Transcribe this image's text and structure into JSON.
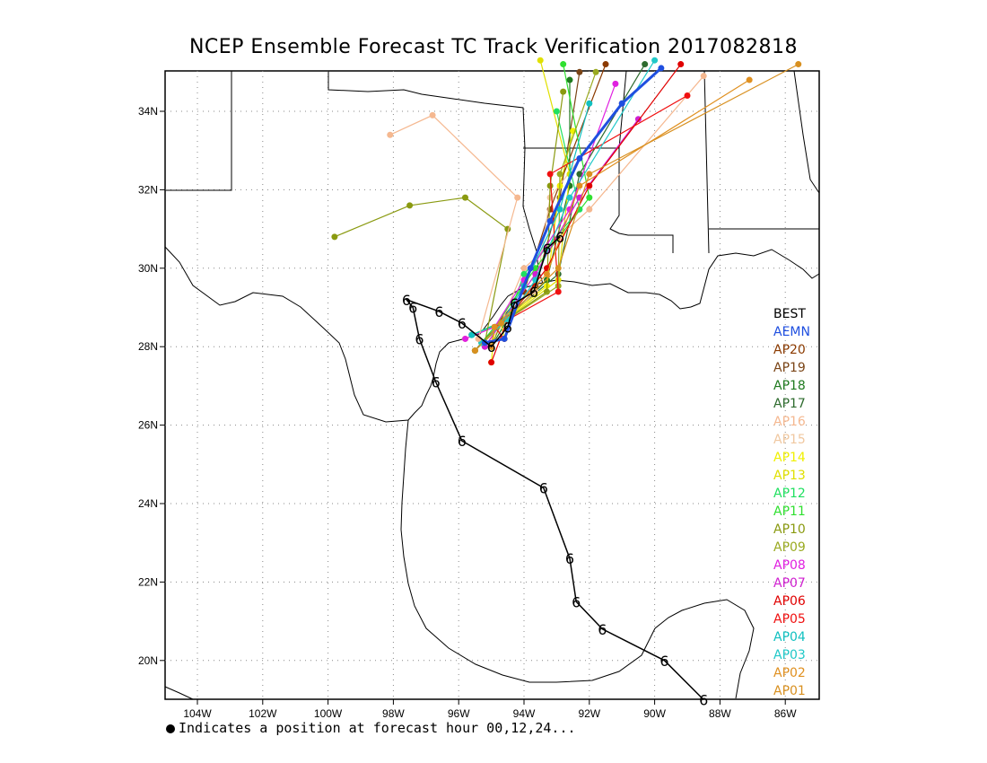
{
  "title": "NCEP Ensemble Forecast TC Track Verification 2017082818",
  "footnote": "Indicates a position at forecast hour 00,12,24...",
  "axes": {
    "lon_labels": [
      "104W",
      "102W",
      "100W",
      "98W",
      "96W",
      "94W",
      "92W",
      "90W",
      "88W",
      "86W"
    ],
    "lat_labels": [
      "34N",
      "32N",
      "30N",
      "28N",
      "26N",
      "24N",
      "22N",
      "20N"
    ]
  },
  "legend": [
    {
      "label": "BEST",
      "color": "#000000"
    },
    {
      "label": "AEMN",
      "color": "#1f4fe0"
    },
    {
      "label": "AP20",
      "color": "#8b3a00"
    },
    {
      "label": "AP19",
      "color": "#7a4416"
    },
    {
      "label": "AP18",
      "color": "#1f7a1f"
    },
    {
      "label": "AP17",
      "color": "#2e6b2e"
    },
    {
      "label": "AP16",
      "color": "#f5b890"
    },
    {
      "label": "AP15",
      "color": "#f0c8a0"
    },
    {
      "label": "AP14",
      "color": "#f0f000"
    },
    {
      "label": "AP13",
      "color": "#e0e000"
    },
    {
      "label": "AP12",
      "color": "#20e060"
    },
    {
      "label": "AP11",
      "color": "#30e030"
    },
    {
      "label": "AP10",
      "color": "#8a9a10"
    },
    {
      "label": "AP09",
      "color": "#9aaa20"
    },
    {
      "label": "AP08",
      "color": "#e020e0"
    },
    {
      "label": "AP07",
      "color": "#d020d0"
    },
    {
      "label": "AP06",
      "color": "#e00000"
    },
    {
      "label": "AP05",
      "color": "#f01010"
    },
    {
      "label": "AP04",
      "color": "#10c0c0"
    },
    {
      "label": "AP03",
      "color": "#20c8c8"
    },
    {
      "label": "AP02",
      "color": "#e09020"
    },
    {
      "label": "AP01",
      "color": "#d89020"
    }
  ]
}
